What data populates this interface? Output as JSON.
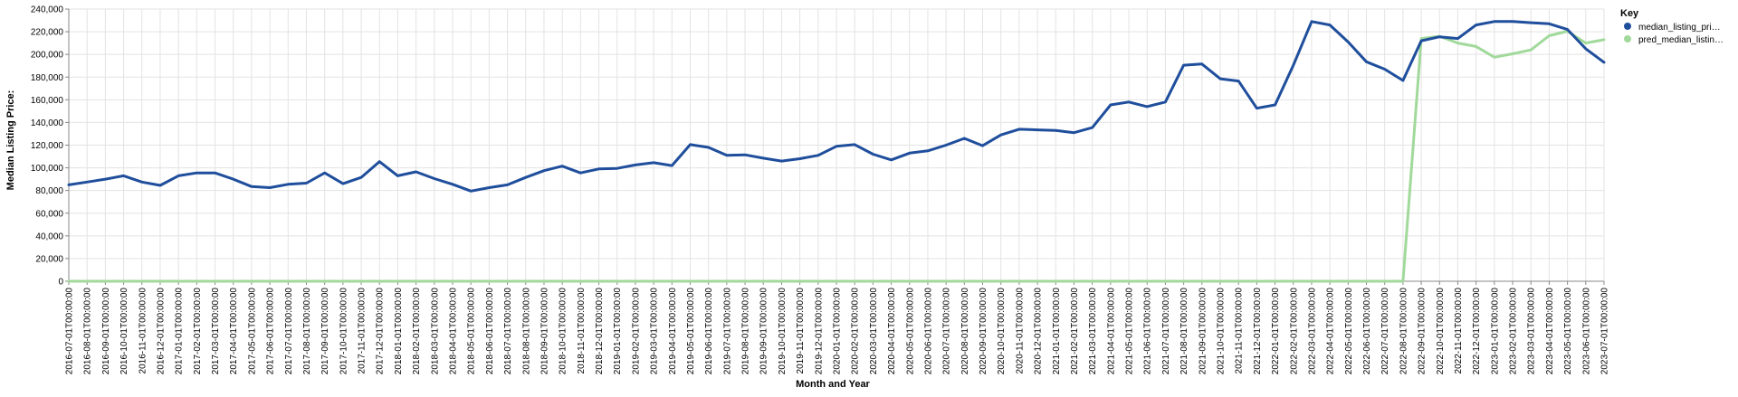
{
  "chart_data": {
    "type": "line",
    "xlabel": "Month and Year",
    "ylabel": "Median Listing Price:",
    "ylim": [
      0,
      240000
    ],
    "yticks": [
      "0",
      "20,000",
      "40,000",
      "60,000",
      "80,000",
      "100,000",
      "120,000",
      "140,000",
      "160,000",
      "180,000",
      "200,000",
      "220,000",
      "240,000"
    ],
    "grid": true,
    "legend": {
      "title": "Key",
      "placement": "right",
      "entries": [
        "median_listing_pri…",
        "pred_median_listin…"
      ]
    },
    "categories": [
      "2016-07-01T00:00:00",
      "2016-08-01T00:00:00",
      "2016-09-01T00:00:00",
      "2016-10-01T00:00:00",
      "2016-11-01T00:00:00",
      "2016-12-01T00:00:00",
      "2017-01-01T00:00:00",
      "2017-02-01T00:00:00",
      "2017-03-01T00:00:00",
      "2017-04-01T00:00:00",
      "2017-05-01T00:00:00",
      "2017-06-01T00:00:00",
      "2017-07-01T00:00:00",
      "2017-08-01T00:00:00",
      "2017-09-01T00:00:00",
      "2017-10-01T00:00:00",
      "2017-11-01T00:00:00",
      "2017-12-01T00:00:00",
      "2018-01-01T00:00:00",
      "2018-02-01T00:00:00",
      "2018-03-01T00:00:00",
      "2018-04-01T00:00:00",
      "2018-05-01T00:00:00",
      "2018-06-01T00:00:00",
      "2018-07-01T00:00:00",
      "2018-08-01T00:00:00",
      "2018-09-01T00:00:00",
      "2018-10-01T00:00:00",
      "2018-11-01T00:00:00",
      "2018-12-01T00:00:00",
      "2019-01-01T00:00:00",
      "2019-02-01T00:00:00",
      "2019-03-01T00:00:00",
      "2019-04-01T00:00:00",
      "2019-05-01T00:00:00",
      "2019-06-01T00:00:00",
      "2019-07-01T00:00:00",
      "2019-08-01T00:00:00",
      "2019-09-01T00:00:00",
      "2019-10-01T00:00:00",
      "2019-11-01T00:00:00",
      "2019-12-01T00:00:00",
      "2020-01-01T00:00:00",
      "2020-02-01T00:00:00",
      "2020-03-01T00:00:00",
      "2020-04-01T00:00:00",
      "2020-05-01T00:00:00",
      "2020-06-01T00:00:00",
      "2020-07-01T00:00:00",
      "2020-08-01T00:00:00",
      "2020-09-01T00:00:00",
      "2020-10-01T00:00:00",
      "2020-11-01T00:00:00",
      "2020-12-01T00:00:00",
      "2021-01-01T00:00:00",
      "2021-02-01T00:00:00",
      "2021-03-01T00:00:00",
      "2021-04-01T00:00:00",
      "2021-05-01T00:00:00",
      "2021-06-01T00:00:00",
      "2021-07-01T00:00:00",
      "2021-08-01T00:00:00",
      "2021-09-01T00:00:00",
      "2021-10-01T00:00:00",
      "2021-11-01T00:00:00",
      "2021-12-01T00:00:00",
      "2022-01-01T00:00:00",
      "2022-02-01T00:00:00",
      "2022-03-01T00:00:00",
      "2022-04-01T00:00:00",
      "2022-05-01T00:00:00",
      "2022-06-01T00:00:00",
      "2022-07-01T00:00:00",
      "2022-08-01T00:00:00",
      "2022-09-01T00:00:00",
      "2022-10-01T00:00:00",
      "2022-11-01T00:00:00",
      "2022-12-01T00:00:00",
      "2023-01-01T00:00:00",
      "2023-02-01T00:00:00",
      "2023-03-01T00:00:00",
      "2023-04-01T00:00:00",
      "2023-05-01T00:00:00",
      "2023-06-01T00:00:00",
      "2023-07-01T00:00:00"
    ],
    "series": [
      {
        "name": "median_listing_pri…",
        "color": "#1f4e9c",
        "values": [
          85000,
          87500,
          90000,
          93000,
          87500,
          84500,
          93000,
          95500,
          95500,
          90000,
          83500,
          82500,
          85500,
          86500,
          95500,
          86000,
          91500,
          105500,
          93000,
          96500,
          90500,
          85500,
          79500,
          82500,
          85000,
          91500,
          97500,
          101500,
          95500,
          99000,
          99500,
          102500,
          104500,
          102000,
          120500,
          118000,
          111000,
          111500,
          108500,
          106000,
          108000,
          111000,
          119000,
          120500,
          112000,
          107000,
          113000,
          115000,
          120000,
          126000,
          119500,
          129000,
          134000,
          133500,
          133000,
          131000,
          135500,
          155500,
          158000,
          154000,
          158000,
          190500,
          191500,
          178500,
          176500,
          152500,
          155500,
          190500,
          229000,
          226000,
          211000,
          193500,
          187000,
          177000,
          212000,
          215500,
          214000,
          226000,
          229000,
          229000,
          228000,
          227000,
          222000,
          205000,
          193000
        ]
      },
      {
        "name": "pred_median_listin…",
        "color": "#a1d99b",
        "values": [
          0,
          0,
          0,
          0,
          0,
          0,
          0,
          0,
          0,
          0,
          0,
          0,
          0,
          0,
          0,
          0,
          0,
          0,
          0,
          0,
          0,
          0,
          0,
          0,
          0,
          0,
          0,
          0,
          0,
          0,
          0,
          0,
          0,
          0,
          0,
          0,
          0,
          0,
          0,
          0,
          0,
          0,
          0,
          0,
          0,
          0,
          0,
          0,
          0,
          0,
          0,
          0,
          0,
          0,
          0,
          0,
          0,
          0,
          0,
          0,
          0,
          0,
          0,
          0,
          0,
          0,
          0,
          0,
          0,
          0,
          0,
          0,
          0,
          0,
          214000,
          216000,
          210000,
          207000,
          197500,
          200500,
          204000,
          216500,
          220500,
          210000,
          213000
        ]
      }
    ]
  }
}
